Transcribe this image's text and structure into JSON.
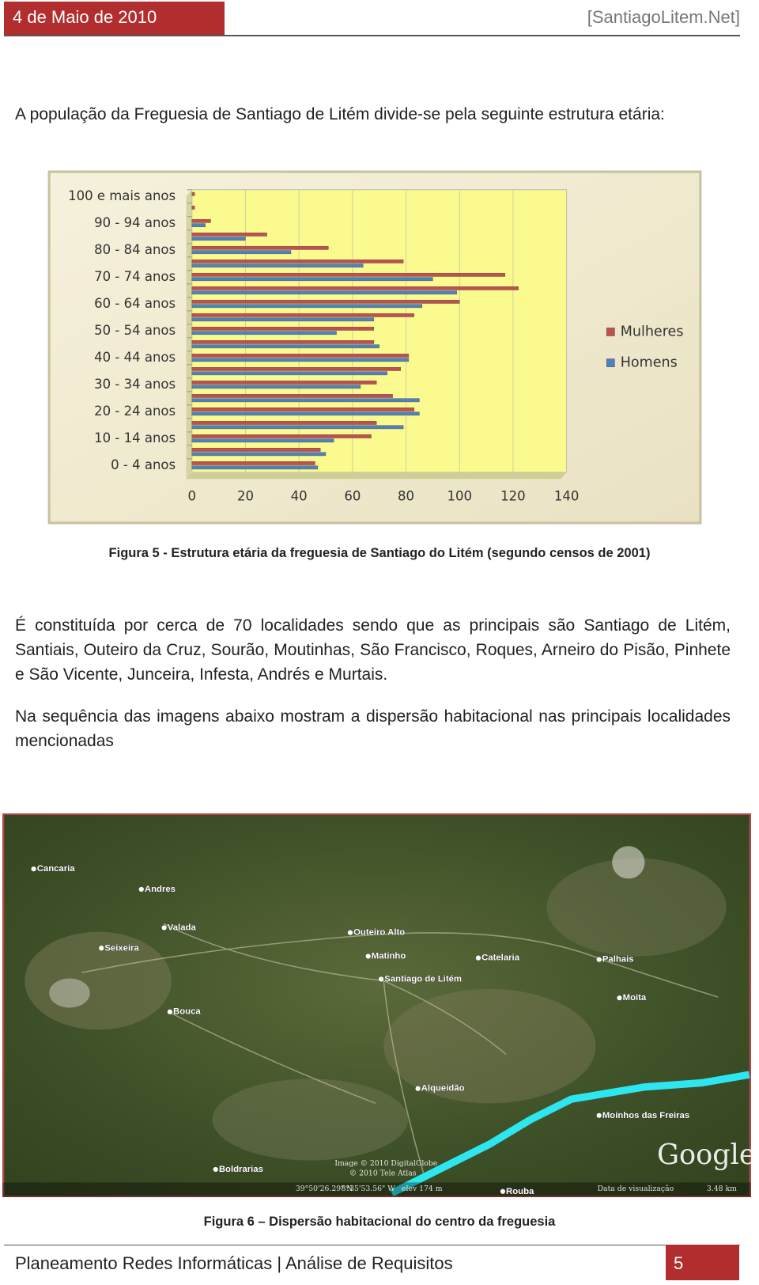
{
  "header": {
    "date": "4 de Maio de 2010",
    "site": "[SantiagoLitem.Net]"
  },
  "paragraphs": [
    "A população da Freguesia de Santiago de Litém divide-se pela seguinte estrutura etária:",
    "É constituída por cerca de 70 localidades sendo que as principais são Santiago de Litém, Santiais, Outeiro da Cruz, Sourão, Moutinhas, São Francisco, Roques, Arneiro do Pisão, Pinhete e São Vicente, Junceira, Infesta, Andrés e Murtais.",
    "Na sequência das imagens abaixo mostram a dispersão habitacional nas principais localidades mencionadas"
  ],
  "chart_data": {
    "type": "bar",
    "orientation": "horizontal",
    "categories": [
      "100 e mais anos",
      null,
      "90 - 94 anos",
      null,
      "80 - 84 anos",
      null,
      "70 - 74 anos",
      null,
      "60 - 64 anos",
      null,
      "50 - 54 anos",
      null,
      "40 - 44 anos",
      null,
      "30 - 34 anos",
      null,
      "20 - 24 anos",
      null,
      "10 - 14 anos",
      null,
      "0 - 4 anos"
    ],
    "series": [
      {
        "name": "Mulheres",
        "color": "#c0504d",
        "values": [
          1,
          1,
          7,
          28,
          51,
          79,
          117,
          122,
          100,
          83,
          68,
          68,
          81,
          78,
          69,
          75,
          83,
          69,
          67,
          48,
          46
        ]
      },
      {
        "name": "Homens",
        "color": "#4f81bd",
        "values": [
          0,
          0,
          5,
          20,
          37,
          64,
          90,
          99,
          86,
          68,
          54,
          70,
          81,
          73,
          63,
          85,
          85,
          79,
          53,
          50,
          47
        ]
      }
    ],
    "xlim": [
      0,
      140
    ],
    "xticks": [
      0,
      20,
      40,
      60,
      80,
      100,
      120,
      140
    ],
    "grid": true,
    "legend": "right"
  },
  "figure5_caption": "Figura 5 - Estrutura etária da freguesia de Santiago do Litém (segundo censos de 2001)",
  "map": {
    "places": [
      "Cancaria",
      "Andres",
      "Valada",
      "Seixeira",
      "Outeiro Alto",
      "Matinho",
      "Catelaria",
      "Palhais",
      "Santiago de Litém",
      "Moita",
      "Bouca",
      "Alqueidão",
      "Moinhos das Freiras",
      "Boldrarias",
      "Rouba"
    ],
    "credits": [
      "Image © 2010 DigitalGlobe",
      "© 2010 Tele Atlas",
      "Google",
      "39°50'26.29\" N",
      "8°35'53.56\" W",
      "elev  174 m",
      "Data de visualização",
      "3.48 km"
    ]
  },
  "figure6_caption": "Figura 6 – Dispersão habitacional do centro da freguesia",
  "footer": {
    "title": "Planeamento Redes Informáticas | Análise de Requisitos",
    "page": "5"
  }
}
